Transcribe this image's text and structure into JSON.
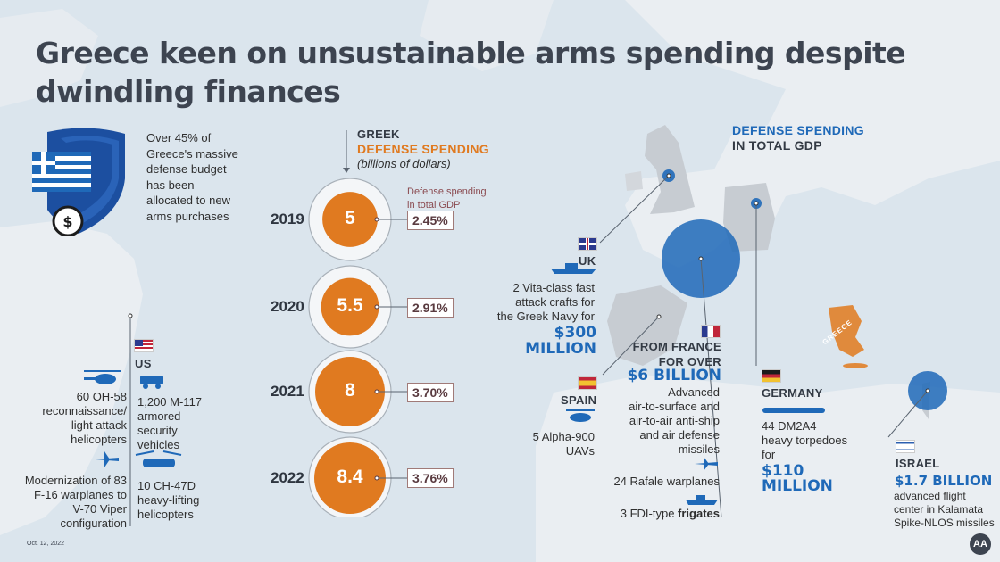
{
  "title": "Greece keen on unsustainable arms spending despite dwindling finances",
  "intro": {
    "lines": [
      "Over 45% of",
      "Greece's massive",
      "defense budget",
      "has been",
      "allocated to new",
      "arms purchases"
    ]
  },
  "spending": {
    "label_top": "GREEK",
    "label_main": "DEFENSE SPENDING",
    "label_unit": "(billions of dollars)",
    "gdp_label_1": "Defense spending",
    "gdp_label_2": "in total GDP",
    "rows": [
      {
        "year": "2019",
        "value": "5",
        "gdp": "2.45%"
      },
      {
        "year": "2020",
        "value": "5.5",
        "gdp": "2.91%"
      },
      {
        "year": "2021",
        "value": "8",
        "gdp": "3.70%"
      },
      {
        "year": "2022",
        "value": "8.4",
        "gdp": "3.76%"
      }
    ]
  },
  "legend": {
    "line1": "DEFENSE SPENDING",
    "line2": "IN TOTAL GDP"
  },
  "us": {
    "name": "US",
    "item1": [
      "60 OH-58",
      "reconnaissance/",
      "light attack",
      "helicopters"
    ],
    "item2": [
      "1,200 M-117",
      "armored",
      "security",
      "vehicles"
    ],
    "item3": [
      "Modernization of 83",
      "F-16 warplanes to",
      "V-70 Viper",
      "configuration"
    ],
    "item4": [
      "10 CH-47D",
      "heavy-lifting",
      "helicopters"
    ]
  },
  "uk": {
    "name": "UK",
    "lines": [
      "2 Vita-class fast",
      "attack crafts for",
      "the Greek Navy for"
    ],
    "amount_1": "$300",
    "amount_2": "MILLION"
  },
  "spain": {
    "name": "SPAIN",
    "lines": [
      "5 Alpha-900",
      "UAVs"
    ]
  },
  "france": {
    "from_1": "FROM FRANCE",
    "from_2": "FOR OVER",
    "amount": "$6 BILLION",
    "lines": [
      "Advanced",
      "air-to-surface and",
      "air-to-air anti-ship",
      "and air defense",
      "missiles"
    ],
    "rafale": "24 Rafale warplanes",
    "frigates_pre": "3 FDI-type ",
    "frigates_bold": "frigates"
  },
  "germany": {
    "name": "GERMANY",
    "lines": [
      "44 DM2A4",
      "heavy torpedoes",
      "for"
    ],
    "amount_1": "$110",
    "amount_2": "MILLION"
  },
  "israel": {
    "name": "ISRAEL",
    "amount": "$1.7 BILLION",
    "lines": [
      "advanced flight",
      "center in Kalamata",
      "Spike-NLOS missiles"
    ]
  },
  "map_label_greece": "GREECE",
  "date": "Oct. 12, 2022",
  "logo": "AA",
  "colors": {
    "orange": "#e07a20",
    "blue": "#1f69b8",
    "title": "#3d4450"
  }
}
